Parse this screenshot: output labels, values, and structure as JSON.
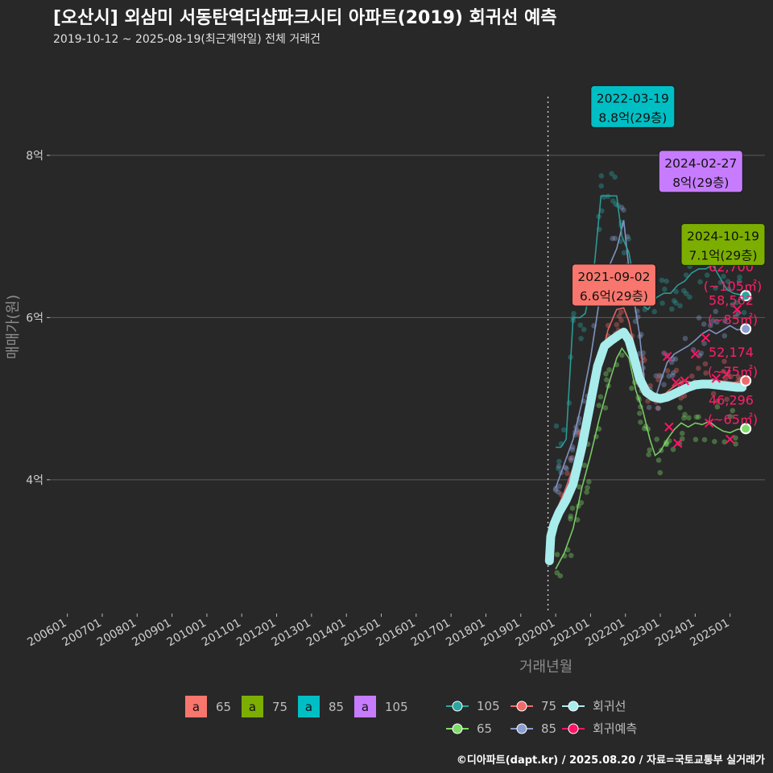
{
  "title": "[오산시] 외삼미 서동탄역더샵파크시티 아파트(2019) 회귀선 예측",
  "subtitle": "2019-10-12 ~ 2025-08-19(최근계약일) 전체 거래건",
  "footer": "©디아파트(dapt.kr) / 2025.08.20 / 자료=국토교통부 실거래가",
  "colors": {
    "background": "#282828",
    "s65": "#7fdc6a",
    "s75": "#f06a6a",
    "s85": "#8a9ed0",
    "s105": "#2aa6a2",
    "regression": "#a8ecec",
    "forecast": "#ff1466",
    "ann65": "#f8766d",
    "ann75": "#7cae00",
    "ann85": "#00bfc4",
    "ann105": "#c77cff",
    "end_label": "#ff1f6a"
  },
  "chart_data": {
    "type": "line",
    "xlabel": "거래년월",
    "ylabel": "매매가(원)",
    "x_ticks": [
      "200601",
      "200701",
      "200801",
      "200901",
      "201001",
      "201101",
      "201201",
      "201301",
      "201401",
      "201501",
      "201601",
      "201701",
      "201801",
      "201901",
      "202001",
      "202101",
      "202201",
      "202301",
      "202401",
      "202501"
    ],
    "y_ticks": [
      {
        "value": 4,
        "label": "4억"
      },
      {
        "value": 6,
        "label": "6억"
      },
      {
        "value": 8,
        "label": "8억"
      }
    ],
    "xlim": [
      2005.5,
      2026.0
    ],
    "ylim": [
      2.35,
      9.3
    ],
    "first_trade_line": 2019.78,
    "series": [
      {
        "name": "65",
        "color_key": "s65",
        "points": [
          [
            2020.0,
            2.9
          ],
          [
            2020.25,
            3.1
          ],
          [
            2020.5,
            3.4
          ],
          [
            2020.75,
            3.9
          ],
          [
            2021.0,
            4.3
          ],
          [
            2021.25,
            4.75
          ],
          [
            2021.5,
            5.15
          ],
          [
            2021.75,
            5.5
          ],
          [
            2021.9,
            5.62
          ],
          [
            2022.1,
            5.5
          ],
          [
            2022.3,
            5.1
          ],
          [
            2022.5,
            4.85
          ],
          [
            2022.7,
            4.5
          ],
          [
            2022.85,
            4.3
          ],
          [
            2023.0,
            4.35
          ],
          [
            2023.2,
            4.5
          ],
          [
            2023.4,
            4.62
          ],
          [
            2023.6,
            4.7
          ],
          [
            2023.8,
            4.65
          ],
          [
            2024.0,
            4.7
          ],
          [
            2024.2,
            4.68
          ],
          [
            2024.4,
            4.72
          ],
          [
            2024.6,
            4.65
          ],
          [
            2024.8,
            4.6
          ],
          [
            2025.0,
            4.58
          ],
          [
            2025.2,
            4.62
          ],
          [
            2025.4,
            4.63
          ]
        ]
      },
      {
        "name": "75",
        "color_key": "s75",
        "points": [
          [
            2020.0,
            3.6
          ],
          [
            2020.25,
            3.85
          ],
          [
            2020.5,
            4.15
          ],
          [
            2020.75,
            4.5
          ],
          [
            2021.0,
            4.95
          ],
          [
            2021.25,
            5.4
          ],
          [
            2021.5,
            5.85
          ],
          [
            2021.75,
            6.1
          ],
          [
            2021.95,
            6.12
          ],
          [
            2022.1,
            5.95
          ],
          [
            2022.3,
            5.55
          ],
          [
            2022.5,
            5.25
          ],
          [
            2022.7,
            5.05
          ],
          [
            2022.9,
            5.0
          ],
          [
            2023.1,
            5.05
          ],
          [
            2023.3,
            5.12
          ],
          [
            2023.5,
            5.18
          ],
          [
            2023.7,
            5.22
          ],
          [
            2023.9,
            5.2
          ],
          [
            2024.1,
            5.22
          ],
          [
            2024.3,
            5.2
          ],
          [
            2024.5,
            5.24
          ],
          [
            2024.7,
            5.22
          ],
          [
            2024.9,
            5.21
          ],
          [
            2025.1,
            5.2
          ],
          [
            2025.3,
            5.21
          ],
          [
            2025.45,
            5.22
          ]
        ]
      },
      {
        "name": "85",
        "color_key": "s85",
        "points": [
          [
            2020.0,
            3.9
          ],
          [
            2020.25,
            4.2
          ],
          [
            2020.5,
            4.5
          ],
          [
            2020.75,
            4.95
          ],
          [
            2021.0,
            5.5
          ],
          [
            2021.25,
            6.2
          ],
          [
            2021.5,
            6.6
          ],
          [
            2021.75,
            6.85
          ],
          [
            2021.95,
            7.2
          ],
          [
            2022.1,
            6.6
          ],
          [
            2022.25,
            6.2
          ],
          [
            2022.4,
            5.8
          ],
          [
            2022.55,
            5.2
          ],
          [
            2022.7,
            5.1
          ],
          [
            2022.85,
            5.0
          ],
          [
            2023.0,
            5.2
          ],
          [
            2023.2,
            5.45
          ],
          [
            2023.4,
            5.55
          ],
          [
            2023.6,
            5.6
          ],
          [
            2023.8,
            5.65
          ],
          [
            2024.0,
            5.72
          ],
          [
            2024.2,
            5.8
          ],
          [
            2024.4,
            5.85
          ],
          [
            2024.6,
            5.8
          ],
          [
            2024.8,
            5.85
          ],
          [
            2025.0,
            5.9
          ],
          [
            2025.2,
            5.85
          ],
          [
            2025.45,
            5.86
          ]
        ]
      },
      {
        "name": "105",
        "color_key": "s105",
        "points": [
          [
            2020.0,
            4.4
          ],
          [
            2020.15,
            4.4
          ],
          [
            2020.3,
            4.5
          ],
          [
            2020.5,
            6.0
          ],
          [
            2020.7,
            6.0
          ],
          [
            2020.85,
            6.05
          ],
          [
            2021.1,
            6.6
          ],
          [
            2021.3,
            7.5
          ],
          [
            2021.5,
            7.5
          ],
          [
            2021.75,
            7.5
          ],
          [
            2021.9,
            7.0
          ],
          [
            2022.1,
            6.8
          ],
          [
            2022.3,
            6.3
          ],
          [
            2022.5,
            6.15
          ],
          [
            2022.65,
            6.1
          ],
          [
            2022.8,
            6.2
          ],
          [
            2022.9,
            6.25
          ],
          [
            2023.1,
            6.3
          ],
          [
            2023.3,
            6.3
          ],
          [
            2023.5,
            6.4
          ],
          [
            2023.7,
            6.45
          ],
          [
            2023.9,
            6.55
          ],
          [
            2024.1,
            6.6
          ],
          [
            2024.3,
            6.6
          ],
          [
            2024.5,
            6.65
          ],
          [
            2024.7,
            6.5
          ],
          [
            2024.9,
            6.35
          ],
          [
            2025.1,
            6.3
          ],
          [
            2025.3,
            6.28
          ],
          [
            2025.45,
            6.27
          ]
        ]
      }
    ],
    "regression": {
      "name": "회귀선",
      "points": [
        [
          2019.82,
          3.0
        ],
        [
          2019.86,
          3.3
        ],
        [
          2019.95,
          3.45
        ],
        [
          2020.1,
          3.6
        ],
        [
          2020.3,
          3.75
        ],
        [
          2020.5,
          3.95
        ],
        [
          2020.75,
          4.4
        ],
        [
          2021.0,
          4.95
        ],
        [
          2021.2,
          5.4
        ],
        [
          2021.4,
          5.65
        ],
        [
          2021.6,
          5.72
        ],
        [
          2021.8,
          5.78
        ],
        [
          2021.95,
          5.82
        ],
        [
          2022.1,
          5.72
        ],
        [
          2022.25,
          5.5
        ],
        [
          2022.4,
          5.25
        ],
        [
          2022.6,
          5.08
        ],
        [
          2022.8,
          5.02
        ],
        [
          2023.0,
          5.0
        ],
        [
          2023.2,
          5.02
        ],
        [
          2023.4,
          5.06
        ],
        [
          2023.6,
          5.1
        ],
        [
          2023.8,
          5.14
        ],
        [
          2024.0,
          5.17
        ],
        [
          2024.2,
          5.18
        ],
        [
          2024.4,
          5.18
        ],
        [
          2024.6,
          5.17
        ],
        [
          2024.8,
          5.16
        ],
        [
          2025.0,
          5.15
        ],
        [
          2025.2,
          5.14
        ],
        [
          2025.35,
          5.14
        ]
      ]
    },
    "forecast": {
      "name": "회귀예측",
      "points": [
        [
          2023.2,
          5.52
        ],
        [
          2023.45,
          5.2
        ],
        [
          2023.7,
          5.22
        ],
        [
          2024.0,
          5.55
        ],
        [
          2024.3,
          5.75
        ],
        [
          2024.6,
          5.25
        ],
        [
          2024.9,
          5.3
        ],
        [
          2025.2,
          6.1
        ],
        [
          2023.25,
          4.65
        ],
        [
          2023.5,
          4.45
        ],
        [
          2024.4,
          4.7
        ],
        [
          2025.0,
          4.5
        ]
      ]
    },
    "annotations": [
      {
        "date": "2022-03-19",
        "price": "8.8억(29층)",
        "x": 2022.21,
        "y": 8.8,
        "box_color_key": "ann85"
      },
      {
        "date": "2024-02-27",
        "price": "8억(29층)",
        "x": 2024.16,
        "y": 8.0,
        "box_color_key": "ann105"
      },
      {
        "date": "2024-10-19",
        "price": "7.1억(29층)",
        "x": 2024.8,
        "y": 7.1,
        "box_color_key": "ann75"
      },
      {
        "date": "2021-09-02",
        "price": "6.6억(29층)",
        "x": 2021.67,
        "y": 6.6,
        "box_color_key": "ann65"
      }
    ],
    "end_labels": [
      {
        "value": "62,700",
        "size": "(~105㎡)",
        "y": 6.27,
        "color_key": "s105"
      },
      {
        "value": "58,562",
        "size": "(~85㎡)",
        "y": 5.86,
        "color_key": "s85"
      },
      {
        "value": "52,174",
        "size": "(~75㎡)",
        "y": 5.22,
        "color_key": "s75"
      },
      {
        "value": "46,296",
        "size": "(~65㎡)",
        "y": 4.63,
        "color_key": "s65"
      }
    ],
    "legend_a": [
      {
        "glyph": "a",
        "label": "65",
        "color_key": "ann65"
      },
      {
        "glyph": "a",
        "label": "75",
        "color_key": "ann75"
      },
      {
        "glyph": "a",
        "label": "85",
        "color_key": "ann85"
      },
      {
        "glyph": "a",
        "label": "105",
        "color_key": "ann105"
      }
    ],
    "legend_b": [
      {
        "label": "105",
        "color_key": "s105"
      },
      {
        "label": "75",
        "color_key": "s75"
      },
      {
        "label": "회귀선",
        "color_key": "regression"
      },
      {
        "label": "65",
        "color_key": "s65"
      },
      {
        "label": "85",
        "color_key": "s85"
      },
      {
        "label": "회귀예측",
        "color_key": "forecast"
      }
    ],
    "legend_position": "bottom"
  }
}
